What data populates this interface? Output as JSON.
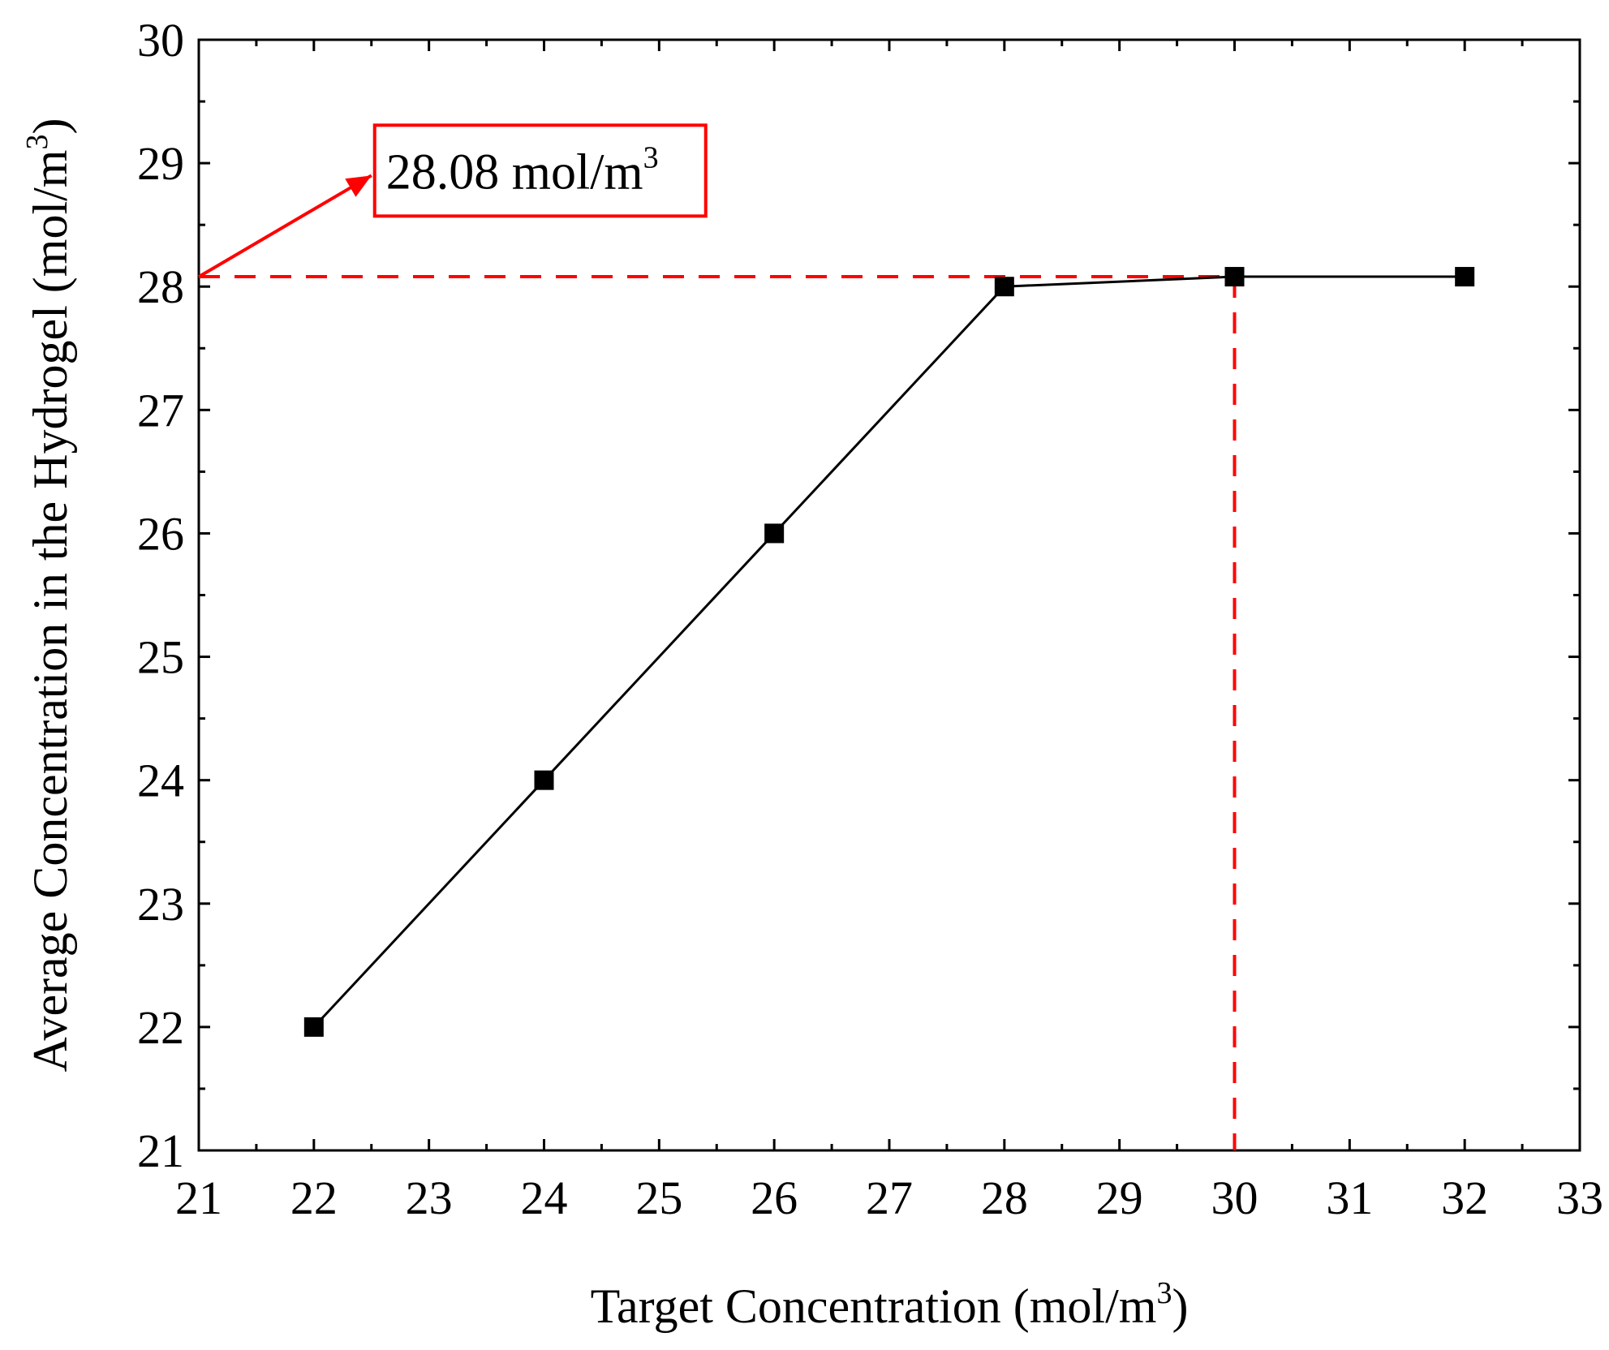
{
  "chart_data": {
    "type": "line",
    "title": "",
    "xlabel": "Target Concentration (mol/m",
    "xlabel_sup": "3",
    "xlabel_tail": ")",
    "ylabel": "Average Concentration in the Hydrogel (mol/m",
    "ylabel_sup": "3",
    "ylabel_tail": ")",
    "xlim": [
      21,
      33
    ],
    "ylim": [
      21,
      30
    ],
    "xticks": [
      21,
      22,
      23,
      24,
      25,
      26,
      27,
      28,
      29,
      30,
      31,
      32,
      33
    ],
    "yticks": [
      21,
      22,
      23,
      24,
      25,
      26,
      27,
      28,
      29,
      30
    ],
    "series": [
      {
        "name": "Average Concentration",
        "x": [
          22,
          24,
          26,
          28,
          30,
          32
        ],
        "y": [
          22,
          24,
          26,
          28,
          28.08,
          28.08
        ],
        "color": "#000000",
        "marker": "square"
      }
    ],
    "reference": {
      "x": 30,
      "y": 28.08,
      "color": "#ff0000"
    },
    "annotation": {
      "text": "28.08 mol/m",
      "sup": "3",
      "color": "#ff0000",
      "arrow_from": [
        21,
        28.08
      ],
      "arrow_to": [
        22.5,
        28.9
      ]
    },
    "grid": false
  }
}
